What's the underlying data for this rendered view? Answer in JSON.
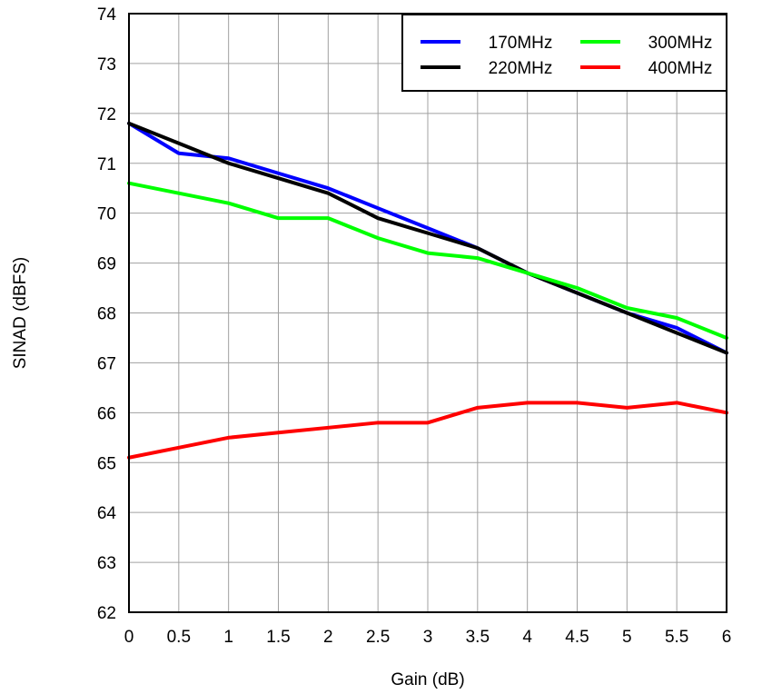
{
  "chart_data": {
    "type": "line",
    "title": "",
    "xlabel": "Gain (dB)",
    "ylabel": "SINAD (dBFS)",
    "xlim": [
      0,
      6
    ],
    "ylim": [
      62,
      74
    ],
    "x_ticks": [
      "0",
      "0.5",
      "1",
      "1.5",
      "2",
      "2.5",
      "3",
      "3.5",
      "4",
      "4.5",
      "5",
      "5.5",
      "6"
    ],
    "y_ticks": [
      "62",
      "63",
      "64",
      "65",
      "66",
      "67",
      "68",
      "69",
      "70",
      "71",
      "72",
      "73",
      "74"
    ],
    "grid": true,
    "legend_position": "top-right",
    "x": [
      0,
      0.5,
      1,
      1.5,
      2,
      2.5,
      3,
      3.5,
      4,
      4.5,
      5,
      5.5,
      6
    ],
    "series": [
      {
        "name": "170MHz",
        "color": "#0000ff",
        "values": [
          71.8,
          71.2,
          71.1,
          70.8,
          70.5,
          70.1,
          69.7,
          69.3,
          68.8,
          68.4,
          68.0,
          67.7,
          67.2
        ]
      },
      {
        "name": "220MHz",
        "color": "#000000",
        "values": [
          71.8,
          71.4,
          71.0,
          70.7,
          70.4,
          69.9,
          69.6,
          69.3,
          68.8,
          68.4,
          68.0,
          67.6,
          67.2
        ]
      },
      {
        "name": "300MHz",
        "color": "#00ff00",
        "values": [
          70.6,
          70.4,
          70.2,
          69.9,
          69.9,
          69.5,
          69.2,
          69.1,
          68.8,
          68.5,
          68.1,
          67.9,
          67.5
        ]
      },
      {
        "name": "400MHz",
        "color": "#ff0000",
        "values": [
          65.1,
          65.3,
          65.5,
          65.6,
          65.7,
          65.8,
          65.8,
          66.1,
          66.2,
          66.2,
          66.1,
          66.2,
          66.0
        ]
      }
    ]
  }
}
